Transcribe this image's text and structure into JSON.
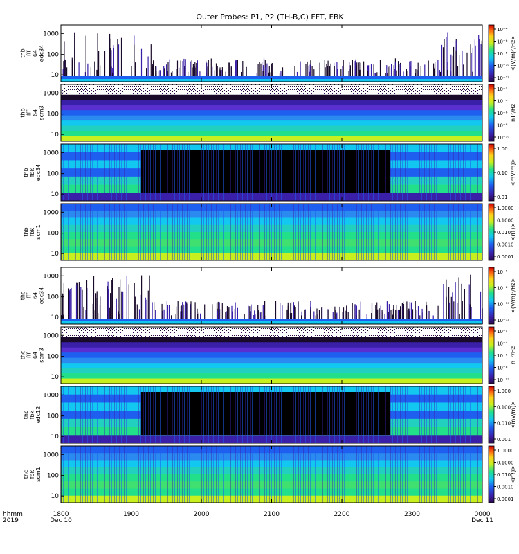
{
  "chart_data": {
    "type": "heatmap",
    "title": "Outer Probes: P1, P2 (TH-B,C) FFT, FBK",
    "time_axis": {
      "tick_labels": [
        "1800",
        "1900",
        "2000",
        "2100",
        "2200",
        "2300",
        "0000"
      ],
      "range_hhmm": [
        "1800",
        "0000"
      ],
      "axis_title": "hhmm",
      "year": "2019",
      "start_date": "Dec 10",
      "end_date": "Dec 11"
    },
    "panels": [
      {
        "label_lines": [
          "thb",
          "fff",
          "64",
          "edc34"
        ],
        "y_ticks": [
          "10",
          "100",
          "1000"
        ],
        "colorbar_label": "<(V/m)²/Hz>",
        "colorbar_ticks": [
          "10⁻⁴",
          "10⁻⁶",
          "10⁻⁸",
          "10⁻¹⁰",
          "10⁻¹²"
        ]
      },
      {
        "label_lines": [
          "thb",
          "fff",
          "64",
          "scm3"
        ],
        "y_ticks": [
          "10",
          "100",
          "1000"
        ],
        "colorbar_label": "nT²/Hz",
        "colorbar_ticks": [
          "10⁻²",
          "10⁻⁴",
          "10⁻⁶",
          "10⁻⁸",
          "10⁻¹⁰"
        ]
      },
      {
        "label_lines": [
          "thb",
          "fbk",
          "edc34"
        ],
        "y_ticks": [
          "10",
          "100",
          "1000"
        ],
        "colorbar_label": "<mV/m)>",
        "colorbar_ticks": [
          "1.00",
          "0.10",
          "0.01"
        ]
      },
      {
        "label_lines": [
          "thb",
          "fbk",
          "scm1"
        ],
        "y_ticks": [
          "10",
          "100",
          "1000"
        ],
        "colorbar_label": "<nT)>",
        "colorbar_ticks": [
          "1.0000",
          "0.1000",
          "0.0100",
          "0.0010",
          "0.0001"
        ]
      },
      {
        "label_lines": [
          "thc",
          "fff",
          "64",
          "edc34"
        ],
        "y_ticks": [
          "10",
          "100",
          "1000"
        ],
        "colorbar_label": "<(V/m)²/Hz>",
        "colorbar_ticks": [
          "10⁻⁶",
          "10⁻⁸",
          "10⁻¹⁰",
          "10⁻¹²"
        ]
      },
      {
        "label_lines": [
          "thc",
          "fff",
          "64",
          "scm3"
        ],
        "y_ticks": [
          "10",
          "100",
          "1000"
        ],
        "colorbar_label": "nT²/Hz",
        "colorbar_ticks": [
          "10⁻²",
          "10⁻⁴",
          "10⁻⁶",
          "10⁻⁸",
          "10⁻¹⁰"
        ]
      },
      {
        "label_lines": [
          "thc",
          "fbk",
          "edc12"
        ],
        "y_ticks": [
          "10",
          "100",
          "1000"
        ],
        "colorbar_label": "<mV/m)>",
        "colorbar_ticks": [
          "1.000",
          "0.100",
          "0.010",
          "0.001"
        ]
      },
      {
        "label_lines": [
          "thc",
          "fbk",
          "scm1"
        ],
        "y_ticks": [
          "10",
          "100",
          "1000"
        ],
        "colorbar_label": "<nT)>",
        "colorbar_ticks": [
          "1.0000",
          "0.1000",
          "0.0100",
          "0.0010",
          "0.0001"
        ]
      }
    ]
  }
}
